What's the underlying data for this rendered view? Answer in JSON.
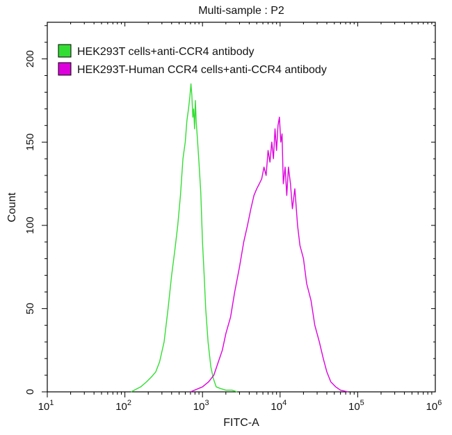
{
  "chart_data": {
    "type": "line",
    "title": "Multi-sample : P2",
    "xlabel": "FITC-A",
    "ylabel": "Count",
    "x_scale": "log",
    "xlim": [
      10,
      1000000
    ],
    "ylim": [
      0,
      222
    ],
    "y_ticks": [
      0,
      50,
      100,
      150,
      200
    ],
    "x_tick_labels": [
      {
        "base": "10",
        "exp": "1",
        "value": 10
      },
      {
        "base": "10",
        "exp": "2",
        "value": 100
      },
      {
        "base": "10",
        "exp": "3",
        "value": 1000
      },
      {
        "base": "10",
        "exp": "4",
        "value": 10000
      },
      {
        "base": "10",
        "exp": "5",
        "value": 100000
      },
      {
        "base": "10",
        "exp": "6",
        "value": 1000000
      }
    ],
    "legend_position": "top-left",
    "grid": false,
    "series": [
      {
        "name": "HEK293T cells+anti-CCR4 antibody",
        "color": "#33dd33",
        "points": [
          [
            120,
            0
          ],
          [
            160,
            3
          ],
          [
            190,
            6
          ],
          [
            220,
            9
          ],
          [
            250,
            12
          ],
          [
            280,
            18
          ],
          [
            320,
            30
          ],
          [
            360,
            50
          ],
          [
            400,
            70
          ],
          [
            440,
            85
          ],
          [
            480,
            100
          ],
          [
            520,
            118
          ],
          [
            560,
            140
          ],
          [
            600,
            150
          ],
          [
            630,
            163
          ],
          [
            660,
            170
          ],
          [
            690,
            178
          ],
          [
            710,
            185
          ],
          [
            730,
            178
          ],
          [
            750,
            165
          ],
          [
            770,
            170
          ],
          [
            790,
            158
          ],
          [
            810,
            175
          ],
          [
            830,
            162
          ],
          [
            860,
            152
          ],
          [
            900,
            138
          ],
          [
            950,
            120
          ],
          [
            1000,
            90
          ],
          [
            1050,
            70
          ],
          [
            1100,
            50
          ],
          [
            1180,
            30
          ],
          [
            1280,
            15
          ],
          [
            1380,
            8
          ],
          [
            1500,
            3
          ],
          [
            1700,
            2
          ],
          [
            2000,
            1
          ],
          [
            2400,
            1
          ],
          [
            2800,
            0
          ]
        ]
      },
      {
        "name": "HEK293T-Human CCR4 cells+anti-CCR4 antibody",
        "color": "#dd00dd",
        "points": [
          [
            700,
            0
          ],
          [
            1000,
            3
          ],
          [
            1200,
            6
          ],
          [
            1400,
            10
          ],
          [
            1600,
            18
          ],
          [
            1800,
            25
          ],
          [
            2000,
            35
          ],
          [
            2300,
            45
          ],
          [
            2600,
            60
          ],
          [
            3000,
            75
          ],
          [
            3400,
            90
          ],
          [
            3800,
            100
          ],
          [
            4200,
            110
          ],
          [
            4600,
            118
          ],
          [
            5000,
            122
          ],
          [
            5400,
            125
          ],
          [
            5800,
            128
          ],
          [
            6200,
            135
          ],
          [
            6600,
            130
          ],
          [
            7000,
            145
          ],
          [
            7400,
            138
          ],
          [
            7800,
            150
          ],
          [
            8200,
            140
          ],
          [
            8600,
            158
          ],
          [
            9000,
            145
          ],
          [
            9400,
            160
          ],
          [
            9800,
            165
          ],
          [
            10200,
            150
          ],
          [
            10600,
            155
          ],
          [
            11000,
            125
          ],
          [
            11600,
            135
          ],
          [
            12200,
            118
          ],
          [
            12800,
            135
          ],
          [
            13600,
            125
          ],
          [
            14400,
            110
          ],
          [
            15500,
            122
          ],
          [
            16800,
            100
          ],
          [
            18000,
            88
          ],
          [
            20000,
            80
          ],
          [
            22000,
            65
          ],
          [
            25000,
            55
          ],
          [
            28000,
            40
          ],
          [
            32000,
            30
          ],
          [
            36000,
            20
          ],
          [
            40000,
            12
          ],
          [
            45000,
            6
          ],
          [
            52000,
            3
          ],
          [
            60000,
            1
          ],
          [
            75000,
            0
          ]
        ]
      }
    ]
  }
}
